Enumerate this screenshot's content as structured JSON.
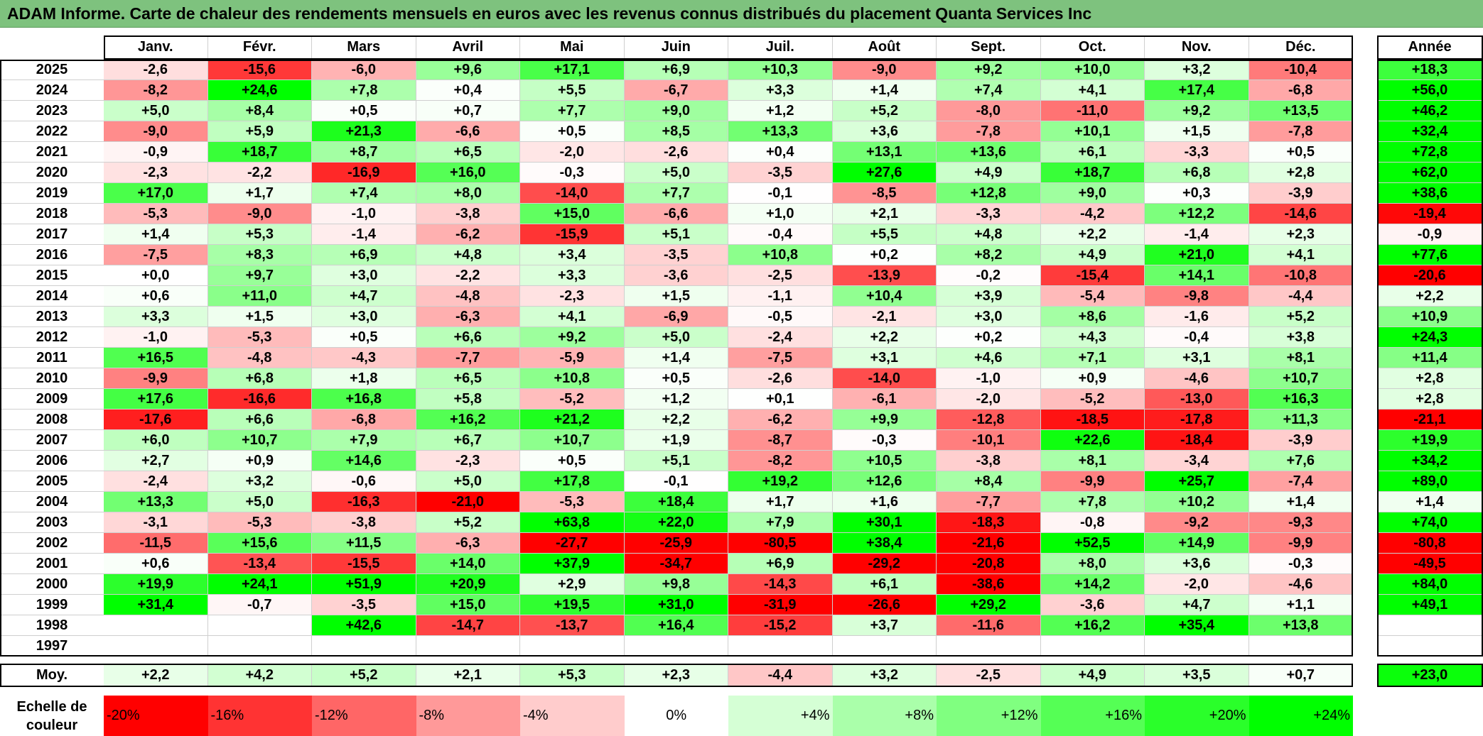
{
  "title": "ADAM Informe. Carte de chaleur des rendements mensuels en euros avec les revenus connus distribués du placement Quanta Services Inc",
  "scale_label": "Echelle de couleur",
  "avg_row_label": "Moy.",
  "year_header": "Année",
  "chart_data": {
    "type": "heatmap",
    "columns": [
      "Janv.",
      "Févr.",
      "Mars",
      "Avril",
      "Mai",
      "Juin",
      "Juil.",
      "Août",
      "Sept.",
      "Oct.",
      "Nov.",
      "Déc."
    ],
    "rows": [
      {
        "year": "2025",
        "values": [
          "-2,6",
          "-15,6",
          "-6,0",
          "+9,6",
          "+17,1",
          "+6,9",
          "+10,3",
          "-9,0",
          "+9,2",
          "+10,0",
          "+3,2",
          "-10,4"
        ],
        "annual": "+18,3"
      },
      {
        "year": "2024",
        "values": [
          "-8,2",
          "+24,6",
          "+7,8",
          "+0,4",
          "+5,5",
          "-6,7",
          "+3,3",
          "+1,4",
          "+7,4",
          "+4,1",
          "+17,4",
          "-6,8"
        ],
        "annual": "+56,0"
      },
      {
        "year": "2023",
        "values": [
          "+5,0",
          "+8,4",
          "+0,5",
          "+0,7",
          "+7,7",
          "+9,0",
          "+1,2",
          "+5,2",
          "-8,0",
          "-11,0",
          "+9,2",
          "+13,5"
        ],
        "annual": "+46,2"
      },
      {
        "year": "2022",
        "values": [
          "-9,0",
          "+5,9",
          "+21,3",
          "-6,6",
          "+0,5",
          "+8,5",
          "+13,3",
          "+3,6",
          "-7,8",
          "+10,1",
          "+1,5",
          "-7,8"
        ],
        "annual": "+32,4"
      },
      {
        "year": "2021",
        "values": [
          "-0,9",
          "+18,7",
          "+8,7",
          "+6,5",
          "-2,0",
          "-2,6",
          "+0,4",
          "+13,1",
          "+13,6",
          "+6,1",
          "-3,3",
          "+0,5"
        ],
        "annual": "+72,8"
      },
      {
        "year": "2020",
        "values": [
          "-2,3",
          "-2,2",
          "-16,9",
          "+16,0",
          "-0,3",
          "+5,0",
          "-3,5",
          "+27,6",
          "+4,9",
          "+18,7",
          "+6,8",
          "+2,8"
        ],
        "annual": "+62,0"
      },
      {
        "year": "2019",
        "values": [
          "+17,0",
          "+1,7",
          "+7,4",
          "+8,0",
          "-14,0",
          "+7,7",
          "-0,1",
          "-8,5",
          "+12,8",
          "+9,0",
          "+0,3",
          "-3,9"
        ],
        "annual": "+38,6"
      },
      {
        "year": "2018",
        "values": [
          "-5,3",
          "-9,0",
          "-1,0",
          "-3,8",
          "+15,0",
          "-6,6",
          "+1,0",
          "+2,1",
          "-3,3",
          "-4,2",
          "+12,2",
          "-14,6"
        ],
        "annual": "-19,4"
      },
      {
        "year": "2017",
        "values": [
          "+1,4",
          "+5,3",
          "-1,4",
          "-6,2",
          "-15,9",
          "+5,1",
          "-0,4",
          "+5,5",
          "+4,8",
          "+2,2",
          "-1,4",
          "+2,3"
        ],
        "annual": "-0,9"
      },
      {
        "year": "2016",
        "values": [
          "-7,5",
          "+8,3",
          "+6,9",
          "+4,8",
          "+3,4",
          "-3,5",
          "+10,8",
          "+0,2",
          "+8,2",
          "+4,9",
          "+21,0",
          "+4,1"
        ],
        "annual": "+77,6"
      },
      {
        "year": "2015",
        "values": [
          "+0,0",
          "+9,7",
          "+3,0",
          "-2,2",
          "+3,3",
          "-3,6",
          "-2,5",
          "-13,9",
          "-0,2",
          "-15,4",
          "+14,1",
          "-10,8"
        ],
        "annual": "-20,6"
      },
      {
        "year": "2014",
        "values": [
          "+0,6",
          "+11,0",
          "+4,7",
          "-4,8",
          "-2,3",
          "+1,5",
          "-1,1",
          "+10,4",
          "+3,9",
          "-5,4",
          "-9,8",
          "-4,4"
        ],
        "annual": "+2,2"
      },
      {
        "year": "2013",
        "values": [
          "+3,3",
          "+1,5",
          "+3,0",
          "-6,3",
          "+4,1",
          "-6,9",
          "-0,5",
          "-2,1",
          "+3,0",
          "+8,6",
          "-1,6",
          "+5,2"
        ],
        "annual": "+10,9"
      },
      {
        "year": "2012",
        "values": [
          "-1,0",
          "-5,3",
          "+0,5",
          "+6,6",
          "+9,2",
          "+5,0",
          "-2,4",
          "+2,2",
          "+0,2",
          "+4,3",
          "-0,4",
          "+3,8"
        ],
        "annual": "+24,3"
      },
      {
        "year": "2011",
        "values": [
          "+16,5",
          "-4,8",
          "-4,3",
          "-7,7",
          "-5,9",
          "+1,4",
          "-7,5",
          "+3,1",
          "+4,6",
          "+7,1",
          "+3,1",
          "+8,1"
        ],
        "annual": "+11,4"
      },
      {
        "year": "2010",
        "values": [
          "-9,9",
          "+6,8",
          "+1,8",
          "+6,5",
          "+10,8",
          "+0,5",
          "-2,6",
          "-14,0",
          "-1,0",
          "+0,9",
          "-4,6",
          "+10,7"
        ],
        "annual": "+2,8"
      },
      {
        "year": "2009",
        "values": [
          "+17,6",
          "-16,6",
          "+16,8",
          "+5,8",
          "-5,2",
          "+1,2",
          "+0,1",
          "-6,1",
          "-2,0",
          "-5,2",
          "-13,0",
          "+16,3"
        ],
        "annual": "+2,8"
      },
      {
        "year": "2008",
        "values": [
          "-17,6",
          "+6,6",
          "-6,8",
          "+16,2",
          "+21,2",
          "+2,2",
          "-6,2",
          "+9,9",
          "-12,8",
          "-18,5",
          "-17,8",
          "+11,3"
        ],
        "annual": "-21,1"
      },
      {
        "year": "2007",
        "values": [
          "+6,0",
          "+10,7",
          "+7,9",
          "+6,7",
          "+10,7",
          "+1,9",
          "-8,7",
          "-0,3",
          "-10,1",
          "+22,6",
          "-18,4",
          "-3,9"
        ],
        "annual": "+19,9"
      },
      {
        "year": "2006",
        "values": [
          "+2,7",
          "+0,9",
          "+14,6",
          "-2,3",
          "+0,5",
          "+5,1",
          "-8,2",
          "+10,5",
          "-3,8",
          "+8,1",
          "-3,4",
          "+7,6"
        ],
        "annual": "+34,2"
      },
      {
        "year": "2005",
        "values": [
          "-2,4",
          "+3,2",
          "-0,6",
          "+5,0",
          "+17,8",
          "-0,1",
          "+19,2",
          "+12,6",
          "+8,4",
          "-9,9",
          "+25,7",
          "-7,4"
        ],
        "annual": "+89,0"
      },
      {
        "year": "2004",
        "values": [
          "+13,3",
          "+5,0",
          "-16,3",
          "-21,0",
          "-5,3",
          "+18,4",
          "+1,7",
          "+1,6",
          "-7,7",
          "+7,8",
          "+10,2",
          "+1,4"
        ],
        "annual": "+1,4"
      },
      {
        "year": "2003",
        "values": [
          "-3,1",
          "-5,3",
          "-3,8",
          "+5,2",
          "+63,8",
          "+22,0",
          "+7,9",
          "+30,1",
          "-18,3",
          "-0,8",
          "-9,2",
          "-9,3"
        ],
        "annual": "+74,0"
      },
      {
        "year": "2002",
        "values": [
          "-11,5",
          "+15,6",
          "+11,5",
          "-6,3",
          "-27,7",
          "-25,9",
          "-80,5",
          "+38,4",
          "-21,6",
          "+52,5",
          "+14,9",
          "-9,9"
        ],
        "annual": "-80,8"
      },
      {
        "year": "2001",
        "values": [
          "+0,6",
          "-13,4",
          "-15,5",
          "+14,0",
          "+37,9",
          "-34,7",
          "+6,9",
          "-29,2",
          "-20,8",
          "+8,0",
          "+3,6",
          "-0,3"
        ],
        "annual": "-49,5"
      },
      {
        "year": "2000",
        "values": [
          "+19,9",
          "+24,1",
          "+51,9",
          "+20,9",
          "+2,9",
          "+9,8",
          "-14,3",
          "+6,1",
          "-38,6",
          "+14,2",
          "-2,0",
          "-4,6"
        ],
        "annual": "+84,0"
      },
      {
        "year": "1999",
        "values": [
          "+31,4",
          "-0,7",
          "-3,5",
          "+15,0",
          "+19,5",
          "+31,0",
          "-31,9",
          "-26,6",
          "+29,2",
          "-3,6",
          "+4,7",
          "+1,1"
        ],
        "annual": "+49,1"
      },
      {
        "year": "1998",
        "values": [
          "",
          "",
          "+42,6",
          "-14,7",
          "-13,7",
          "+16,4",
          "-15,2",
          "+3,7",
          "-11,6",
          "+16,2",
          "+35,4",
          "+13,8"
        ],
        "annual": ""
      },
      {
        "year": "1997",
        "values": [
          "",
          "",
          "",
          "",
          "",
          "",
          "",
          "",
          "",
          "",
          "",
          ""
        ],
        "annual": ""
      }
    ],
    "average": {
      "values": [
        "+2,2",
        "+4,2",
        "+5,2",
        "+2,1",
        "+5,3",
        "+2,3",
        "-4,4",
        "+3,2",
        "-2,5",
        "+4,9",
        "+3,5",
        "+0,7"
      ],
      "annual": "+23,0"
    },
    "scale": [
      "-20%",
      "-16%",
      "-12%",
      "-8%",
      "-4%",
      "0%",
      "+4%",
      "+8%",
      "+12%",
      "+16%",
      "+20%",
      "+24%"
    ],
    "colors": {
      "positive_max": "#00ff00",
      "negative_max": "#ff0000",
      "neutral": "#ffffff",
      "title_bar": "#7ec27e"
    }
  }
}
